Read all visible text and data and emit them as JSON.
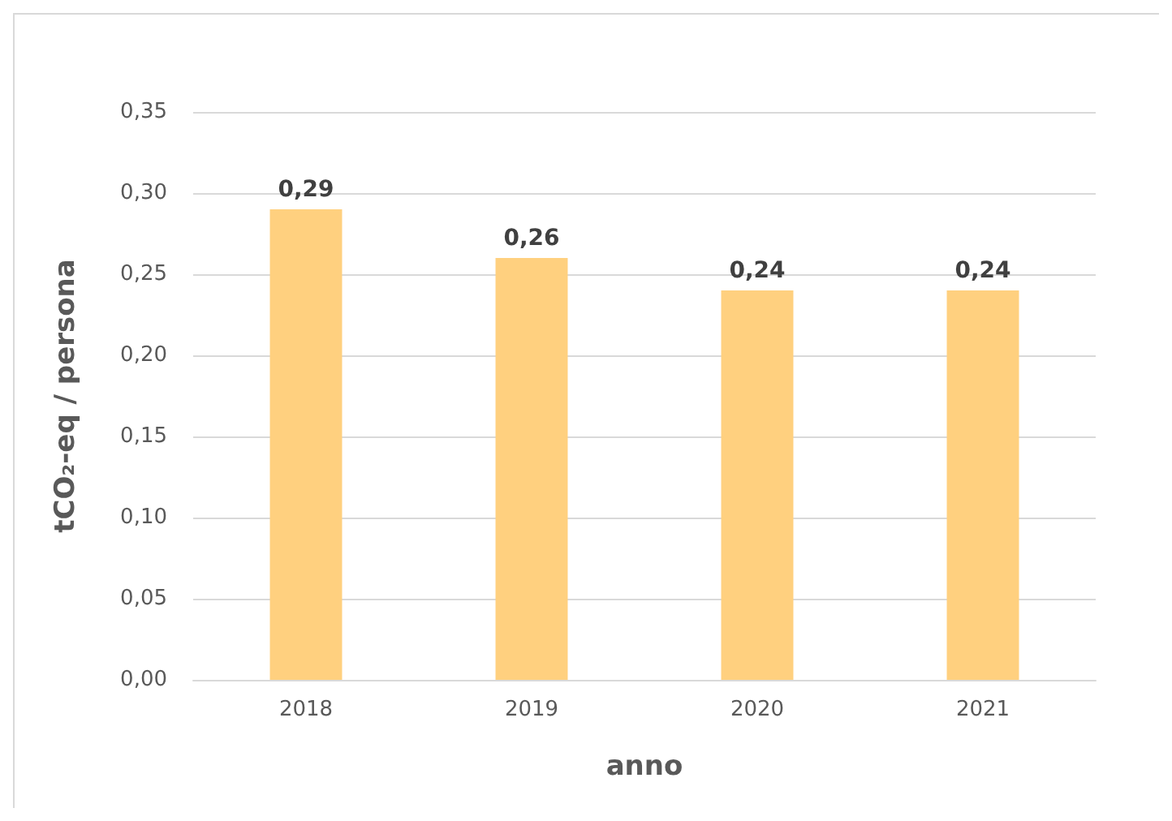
{
  "chart_data": {
    "type": "bar",
    "xlabel": "anno",
    "ylabel": "tCO₂-eq / persona",
    "categories": [
      "2018",
      "2019",
      "2020",
      "2021"
    ],
    "values": [
      0.29,
      0.26,
      0.24,
      0.24
    ],
    "value_labels": [
      "0,29",
      "0,26",
      "0,24",
      "0,24"
    ],
    "color": "#ffd07f",
    "ylim": [
      0,
      0.35
    ],
    "yticks": [
      {
        "value": 0,
        "label": "0,00"
      },
      {
        "value": 0.05,
        "label": "0,05"
      },
      {
        "value": 0.1,
        "label": "0,10"
      },
      {
        "value": 0.15,
        "label": "0,15"
      },
      {
        "value": 0.2,
        "label": "0,20"
      },
      {
        "value": 0.25,
        "label": "0,25"
      },
      {
        "value": 0.3,
        "label": "0,30"
      },
      {
        "value": 0.35,
        "label": "0,35"
      }
    ],
    "grid": "y"
  }
}
